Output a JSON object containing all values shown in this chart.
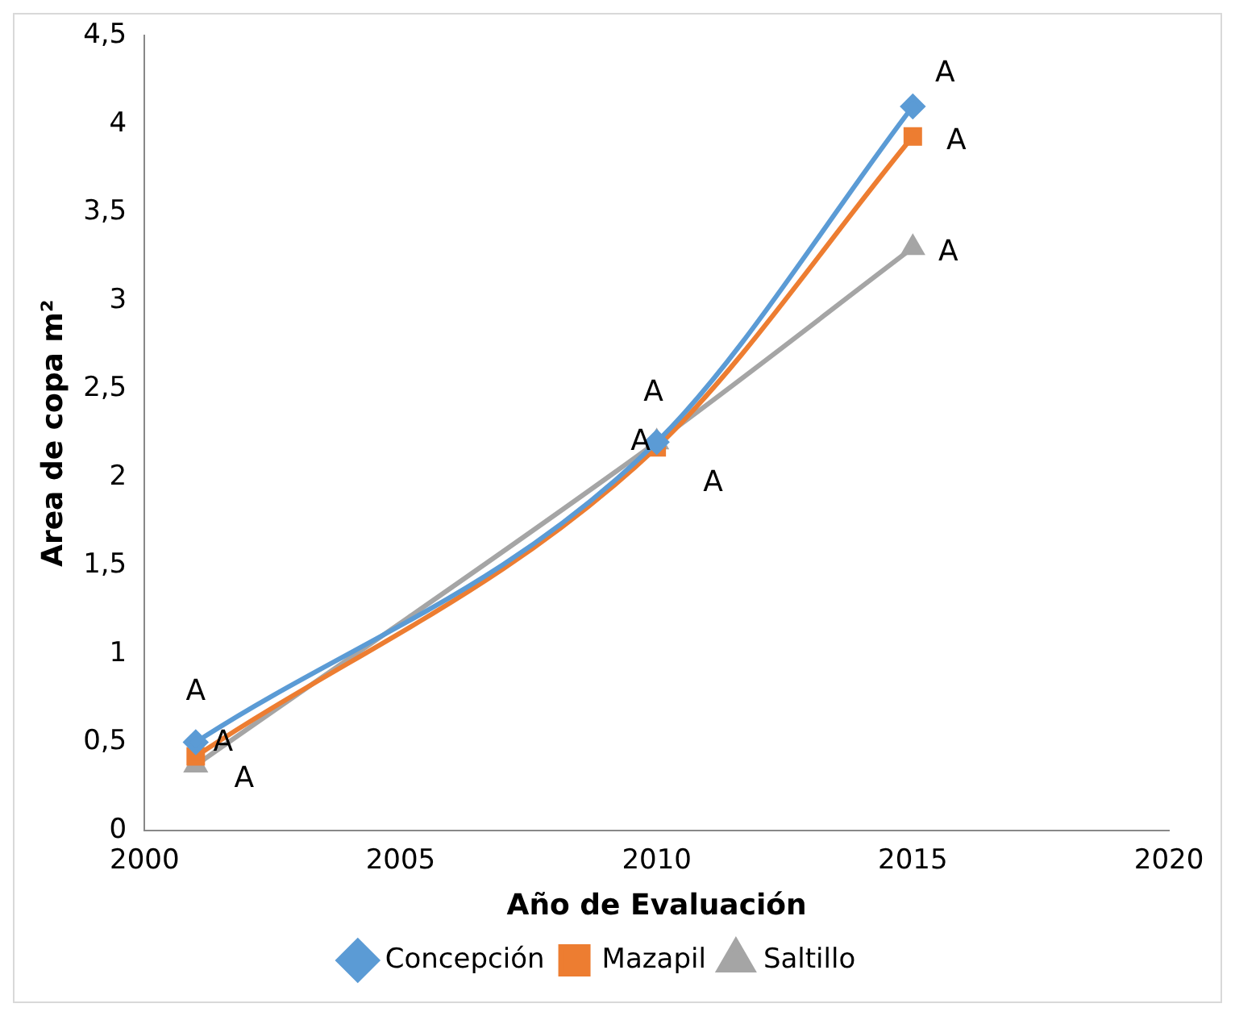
{
  "chart_data": {
    "type": "line",
    "xlabel": "Año de Evaluación",
    "ylabel": "Area de copa m²",
    "xlim": [
      2000,
      2020
    ],
    "xticks": [
      2000,
      2005,
      2010,
      2015,
      2020
    ],
    "ylim": [
      0,
      4.5
    ],
    "yticks": [
      0,
      {
        "value": 0.5,
        "label": "0,5"
      },
      1,
      {
        "value": 1.5,
        "label": "1,5"
      },
      2,
      {
        "value": 2.5,
        "label": "2,5"
      },
      3,
      {
        "value": 3.5,
        "label": "3,5"
      },
      4,
      {
        "value": 4.5,
        "label": "4,5"
      }
    ],
    "grid": false,
    "legend": "bottom",
    "series": [
      {
        "name": "Concepción",
        "color": "#5b9bd5",
        "marker": "diamond",
        "x": [
          2001,
          2010,
          2015
        ],
        "values": [
          0.5,
          2.2,
          4.1
        ]
      },
      {
        "name": "Mazapil",
        "color": "#ed7d31",
        "marker": "square",
        "x": [
          2001,
          2010,
          2015
        ],
        "values": [
          0.42,
          2.17,
          3.93
        ]
      },
      {
        "name": "Saltillo",
        "color": "#a5a5a5",
        "marker": "triangle",
        "x": [
          2001,
          2010,
          2015
        ],
        "values": [
          0.37,
          2.2,
          3.3
        ]
      }
    ],
    "annotations": [
      "A",
      "A",
      "A",
      "A",
      "A",
      "A",
      "A",
      "A",
      "A"
    ]
  }
}
